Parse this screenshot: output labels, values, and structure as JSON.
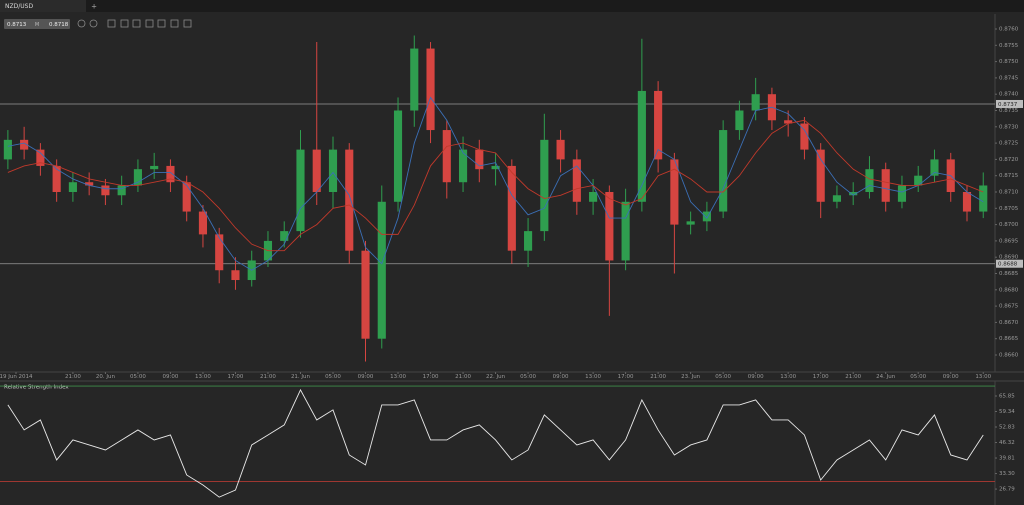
{
  "tabs": {
    "active": "NZD/USD",
    "add": "+"
  },
  "quote": {
    "bid": 0.8713,
    "separator": "M",
    "ask": 0.8718
  },
  "chart_data": [
    {
      "type": "candlestick",
      "x": [
        -8,
        -6,
        -4,
        -2,
        0,
        2,
        4,
        6,
        8,
        10,
        12,
        14,
        16,
        18,
        20,
        22,
        24,
        26,
        28,
        30,
        32,
        34,
        36,
        38,
        40,
        42,
        44,
        46,
        48,
        50,
        52,
        54,
        56,
        58,
        60,
        62,
        64,
        66,
        68,
        70,
        72,
        74,
        76,
        78,
        80,
        82,
        84,
        86,
        88,
        90,
        92,
        94,
        96,
        98,
        100,
        102,
        104,
        106,
        108,
        110,
        112
      ],
      "open": [
        0.872,
        0.8726,
        0.8723,
        0.8718,
        0.871,
        0.8713,
        0.8712,
        0.8709,
        0.8712,
        0.8717,
        0.8718,
        0.8713,
        0.8704,
        0.8697,
        0.8686,
        0.8683,
        0.8689,
        0.8695,
        0.8698,
        0.8723,
        0.871,
        0.8723,
        0.8692,
        0.8665,
        0.8707,
        0.8735,
        0.8754,
        0.8729,
        0.8713,
        0.8723,
        0.8717,
        0.8718,
        0.8692,
        0.8698,
        0.8726,
        0.872,
        0.8707,
        0.871,
        0.8689,
        0.8707,
        0.8741,
        0.872,
        0.87,
        0.8701,
        0.8704,
        0.8729,
        0.8735,
        0.874,
        0.8732,
        0.8731,
        0.8723,
        0.8707,
        0.8709,
        0.871,
        0.8717,
        0.8707,
        0.8712,
        0.8715,
        0.872,
        0.871,
        0.8704
      ],
      "high": [
        0.8729,
        0.873,
        0.8725,
        0.872,
        0.8716,
        0.8716,
        0.8714,
        0.8715,
        0.872,
        0.8722,
        0.872,
        0.8715,
        0.8706,
        0.8699,
        0.869,
        0.8692,
        0.8698,
        0.8701,
        0.8729,
        0.8756,
        0.8727,
        0.8725,
        0.8695,
        0.8712,
        0.8739,
        0.8758,
        0.8756,
        0.8732,
        0.8727,
        0.8726,
        0.8722,
        0.872,
        0.8702,
        0.8734,
        0.8729,
        0.8723,
        0.8714,
        0.8712,
        0.8711,
        0.8757,
        0.8744,
        0.8722,
        0.8704,
        0.8707,
        0.8732,
        0.8738,
        0.8745,
        0.8742,
        0.8735,
        0.8733,
        0.8725,
        0.8712,
        0.8713,
        0.8721,
        0.8719,
        0.8715,
        0.8718,
        0.8723,
        0.8722,
        0.8712,
        0.8716
      ],
      "low": [
        0.8717,
        0.872,
        0.8715,
        0.8707,
        0.8707,
        0.8709,
        0.8706,
        0.8706,
        0.871,
        0.8714,
        0.871,
        0.8701,
        0.8693,
        0.8682,
        0.868,
        0.8681,
        0.8687,
        0.8693,
        0.8696,
        0.8706,
        0.8705,
        0.8688,
        0.8658,
        0.8662,
        0.8704,
        0.873,
        0.8725,
        0.8708,
        0.871,
        0.8713,
        0.8712,
        0.8688,
        0.8687,
        0.8695,
        0.8716,
        0.8703,
        0.8703,
        0.8672,
        0.8686,
        0.8704,
        0.8716,
        0.8685,
        0.8697,
        0.8698,
        0.8702,
        0.8726,
        0.8732,
        0.8729,
        0.8727,
        0.872,
        0.8702,
        0.8705,
        0.8706,
        0.8708,
        0.8704,
        0.8705,
        0.871,
        0.8713,
        0.8707,
        0.8701,
        0.8702
      ],
      "close": [
        0.8726,
        0.8723,
        0.8718,
        0.871,
        0.8713,
        0.8712,
        0.8709,
        0.8712,
        0.8717,
        0.8718,
        0.8713,
        0.8704,
        0.8697,
        0.8686,
        0.8683,
        0.8689,
        0.8695,
        0.8698,
        0.8723,
        0.871,
        0.8723,
        0.8692,
        0.8665,
        0.8707,
        0.8735,
        0.8754,
        0.8729,
        0.8713,
        0.8723,
        0.8717,
        0.8718,
        0.8692,
        0.8698,
        0.8726,
        0.872,
        0.8707,
        0.871,
        0.8689,
        0.8707,
        0.8741,
        0.872,
        0.87,
        0.8701,
        0.8704,
        0.8729,
        0.8735,
        0.874,
        0.8732,
        0.8731,
        0.8723,
        0.8707,
        0.8709,
        0.871,
        0.8717,
        0.8707,
        0.8712,
        0.8715,
        0.872,
        0.871,
        0.8704,
        0.8712
      ],
      "up_color": "#2f9e4f",
      "down_color": "#d64541",
      "ma": [
        {
          "color": "#3b6fb6",
          "values": [
            0.8724,
            0.8725,
            0.8722,
            0.8717,
            0.8714,
            0.8712,
            0.8711,
            0.8711,
            0.8713,
            0.8716,
            0.8716,
            0.8712,
            0.8705,
            0.8696,
            0.8689,
            0.8686,
            0.8689,
            0.8694,
            0.8705,
            0.871,
            0.8716,
            0.8709,
            0.8693,
            0.8688,
            0.8702,
            0.8725,
            0.8739,
            0.8732,
            0.8722,
            0.8718,
            0.8719,
            0.8709,
            0.8703,
            0.8705,
            0.8715,
            0.8718,
            0.8712,
            0.8702,
            0.8702,
            0.8712,
            0.8723,
            0.872,
            0.8707,
            0.8702,
            0.8711,
            0.8723,
            0.8735,
            0.8736,
            0.8734,
            0.8729,
            0.872,
            0.8713,
            0.8709,
            0.8712,
            0.8711,
            0.871,
            0.8712,
            0.8716,
            0.8715,
            0.871,
            0.8707
          ]
        },
        {
          "color": "#c0392b",
          "values": [
            0.8716,
            0.8718,
            0.8719,
            0.8718,
            0.8716,
            0.8714,
            0.8713,
            0.8712,
            0.8712,
            0.8713,
            0.8714,
            0.8713,
            0.871,
            0.8705,
            0.8699,
            0.8694,
            0.8692,
            0.8692,
            0.8697,
            0.87,
            0.8705,
            0.8706,
            0.8702,
            0.8697,
            0.8697,
            0.8706,
            0.8718,
            0.8724,
            0.8725,
            0.8723,
            0.8722,
            0.8716,
            0.8711,
            0.8708,
            0.8709,
            0.8711,
            0.8712,
            0.8708,
            0.8706,
            0.8708,
            0.8715,
            0.8717,
            0.8714,
            0.871,
            0.871,
            0.8715,
            0.8722,
            0.8728,
            0.8731,
            0.8732,
            0.8728,
            0.8722,
            0.8717,
            0.8714,
            0.8713,
            0.8712,
            0.8712,
            0.8713,
            0.8714,
            0.8712,
            0.871
          ]
        }
      ],
      "levels": [
        0.8737,
        0.8688
      ],
      "level_color": "#9a9a9a",
      "xlim": [
        -8.6,
        113.2
      ],
      "xticks": [
        {
          "value": -7,
          "label": "19 Jun 2014"
        },
        {
          "value": 0,
          "label": "21:00"
        },
        {
          "value": 4,
          "label": "20. Jun"
        },
        {
          "value": 8,
          "label": "05:00"
        },
        {
          "value": 12,
          "label": "09:00"
        },
        {
          "value": 16,
          "label": "13:00"
        },
        {
          "value": 20,
          "label": "17:00"
        },
        {
          "value": 24,
          "label": "21:00"
        },
        {
          "value": 28,
          "label": "21. Jun"
        },
        {
          "value": 32,
          "label": "05:00"
        },
        {
          "value": 36,
          "label": "09:00"
        },
        {
          "value": 40,
          "label": "13:00"
        },
        {
          "value": 44,
          "label": "17:00"
        },
        {
          "value": 48,
          "label": "21:00"
        },
        {
          "value": 52,
          "label": "22. Jun"
        },
        {
          "value": 56,
          "label": "05:00"
        },
        {
          "value": 60,
          "label": "09:00"
        },
        {
          "value": 64,
          "label": "13:00"
        },
        {
          "value": 68,
          "label": "17:00"
        },
        {
          "value": 72,
          "label": "21:00"
        },
        {
          "value": 76,
          "label": "23. Jun"
        },
        {
          "value": 80,
          "label": "05:00"
        },
        {
          "value": 84,
          "label": "09:00"
        },
        {
          "value": 88,
          "label": "13:00"
        },
        {
          "value": 92,
          "label": "17:00"
        },
        {
          "value": 96,
          "label": "21:00"
        },
        {
          "value": 100,
          "label": "24. Jun"
        },
        {
          "value": 104,
          "label": "05:00"
        },
        {
          "value": 108,
          "label": "09:00"
        },
        {
          "value": 112,
          "label": "13:00"
        }
      ],
      "ylim": [
        0.86554,
        0.87646
      ],
      "yticks": [
        {
          "value": 0.876,
          "label": "0.8760"
        },
        0.8755,
        {
          "value": 0.875,
          "label": "0.8750"
        },
        0.8745,
        {
          "value": 0.874,
          "label": "0.8740"
        },
        0.8735,
        {
          "value": 0.873,
          "label": "0.8730"
        },
        0.8725,
        {
          "value": 0.872,
          "label": "0.8720"
        },
        0.8715,
        {
          "value": 0.871,
          "label": "0.8710"
        },
        0.8705,
        {
          "value": 0.87,
          "label": "0.8700"
        },
        0.8695,
        {
          "value": 0.869,
          "label": "0.8690"
        },
        0.8685,
        {
          "value": 0.868,
          "label": "0.8680"
        },
        0.8675,
        {
          "value": 0.867,
          "label": "0.8670"
        },
        0.8665,
        {
          "value": 0.866,
          "label": "0.8660"
        }
      ]
    },
    {
      "type": "line",
      "title": "Relative Strength Index",
      "series": [
        {
          "color": "#e8e8e8",
          "values": [
            62.1,
            51.6,
            55.8,
            39.0,
            47.4,
            45.3,
            43.2,
            47.4,
            51.6,
            47.4,
            49.5,
            32.7,
            28.5,
            23.4,
            26.4,
            45.3,
            49.5,
            53.7,
            68.4,
            55.8,
            60.0,
            41.1,
            36.9,
            62.1,
            62.1,
            64.2,
            47.4,
            47.4,
            51.6,
            53.7,
            47.4,
            39.0,
            43.2,
            57.9,
            51.6,
            45.3,
            47.4,
            39.0,
            47.4,
            64.2,
            51.6,
            41.1,
            45.3,
            47.4,
            62.1,
            62.1,
            64.2,
            55.8,
            55.8,
            49.5,
            30.6,
            39.0,
            43.2,
            47.4,
            39.0,
            51.6,
            49.5,
            57.9,
            41.1,
            39.0,
            49.5
          ]
        }
      ],
      "levels": [
        {
          "value": 70,
          "color": "#3f8f4a"
        },
        {
          "value": 30,
          "color": "#b03a33"
        }
      ],
      "ylim": [
        22.2,
        71.3
      ],
      "yticks": [
        65.85,
        59.34,
        52.83,
        46.32,
        39.81,
        {
          "value": 33.3,
          "label": "33.30"
        },
        26.79
      ]
    }
  ]
}
